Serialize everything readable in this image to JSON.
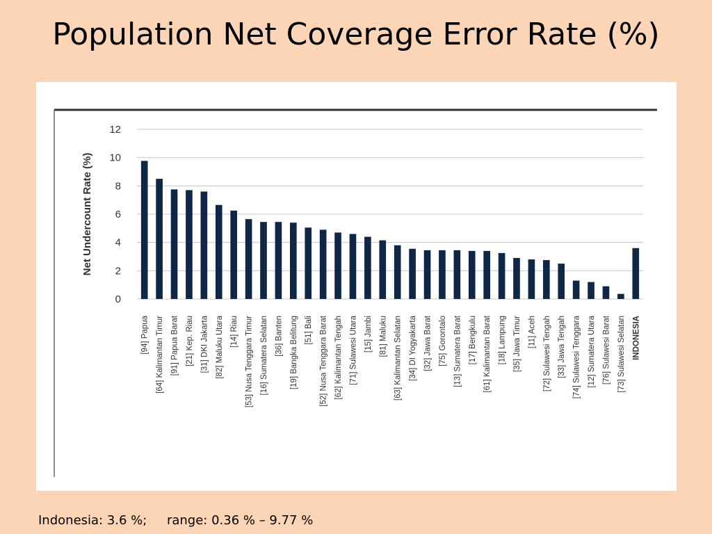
{
  "slide": {
    "title": "Population Net Coverage Error Rate (%)",
    "footer": "Indonesia: 3.6 %;     range: 0.36 % – 9.77 %"
  },
  "chart_data": {
    "type": "bar",
    "title": "",
    "xlabel": "",
    "ylabel": "Net Undercount Rate (%)",
    "ylim": [
      0,
      12
    ],
    "yticks": [
      0,
      2,
      4,
      6,
      8,
      10,
      12
    ],
    "grid": true,
    "bar_color": "#0f2747",
    "categories": [
      "[94] Papua",
      "[64] Kalimantan Timur",
      "[91] Papua Barat",
      "[21] Kep. Riau",
      "[31] DKI Jakarta",
      "[82] Maluku Utara",
      "[14] Riau",
      "[53] Nusa Tenggara Timur",
      "[16] Sumatera Selatan",
      "[36] Banten",
      "[19] Bangka Belitung",
      "[51] Bali",
      "[52] Nusa Tenggara Barat",
      "[62] Kalimantan Tengah",
      "[71] Sulawesi Utara",
      "[15] Jambi",
      "[81] Maluku",
      "[63] Kalimantan Selatan",
      "[34] DI Yogyakarta",
      "[32] Jawa Barat",
      "[75] Gorontalo",
      "[13] Sumatera Barat",
      "[17] Bengkulu",
      "[61] Kalimantan Barat",
      "[18] Lampung",
      "[35] Jawa Timur",
      "[11] Aceh",
      "[72] Sulawesi Tengah",
      "[33] Jawa Tengah",
      "[74] Sulawesi Tenggara",
      "[12] Sumatera Utara",
      "[76] Sulawesi Barat",
      "[73] Sulawesi Selatan",
      "INDONESIA"
    ],
    "values": [
      9.77,
      8.5,
      7.75,
      7.7,
      7.6,
      6.65,
      6.25,
      5.65,
      5.45,
      5.45,
      5.4,
      5.05,
      4.9,
      4.7,
      4.6,
      4.4,
      4.15,
      3.8,
      3.55,
      3.45,
      3.45,
      3.45,
      3.4,
      3.4,
      3.25,
      2.9,
      2.8,
      2.75,
      2.5,
      1.3,
      1.2,
      0.9,
      0.36,
      3.6
    ]
  }
}
